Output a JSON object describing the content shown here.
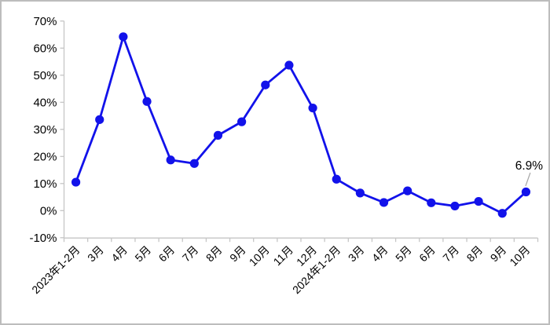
{
  "chart_data": {
    "type": "line",
    "title": "",
    "xlabel": "",
    "ylabel": "",
    "categories": [
      "2023年1-2月",
      "3月",
      "4月",
      "5月",
      "6月",
      "7月",
      "8月",
      "9月",
      "10月",
      "11月",
      "12月",
      "2024年1-2月",
      "3月",
      "4月",
      "5月",
      "6月",
      "7月",
      "8月",
      "9月",
      "10月"
    ],
    "values": [
      10.5,
      33.6,
      64.2,
      40.3,
      18.7,
      17.4,
      27.8,
      32.8,
      46.4,
      53.7,
      37.9,
      11.6,
      6.5,
      3.0,
      7.3,
      2.9,
      1.7,
      3.4,
      -1.0,
      6.9
    ],
    "ylim": [
      -10,
      70
    ],
    "ytick_step": 10,
    "ytick_labels": [
      "70%",
      "60%",
      "50%",
      "40%",
      "30%",
      "20%",
      "10%",
      "0%",
      "-10%"
    ],
    "grid": false,
    "legend": false,
    "annotation": {
      "text": "6.9%",
      "point_index": 19
    },
    "colors": {
      "line": "#1212ea",
      "marker": "#1212ea",
      "axis": "#c6c6c6",
      "tick": "#c6c6c6",
      "label_text": "#000000",
      "annotation_text": "#000000",
      "annotation_leader": "#a6a6a6",
      "background": "#ffffff"
    }
  }
}
